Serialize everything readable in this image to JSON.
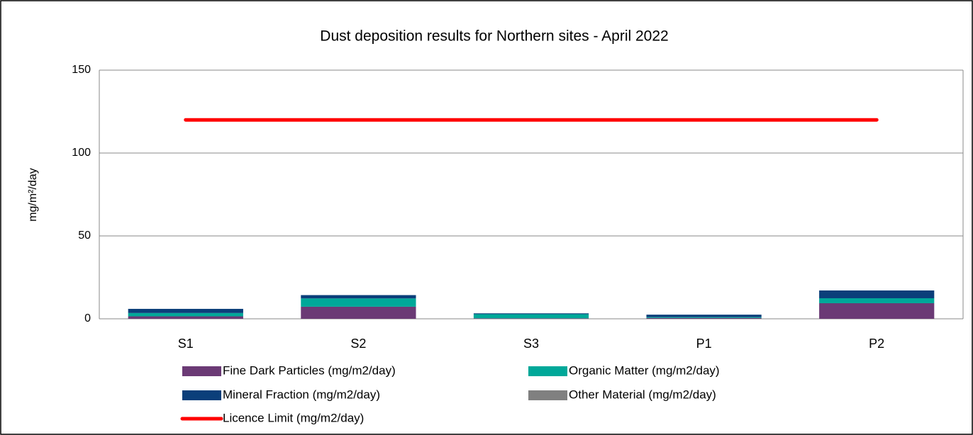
{
  "chart_data": {
    "type": "bar",
    "stacked": true,
    "title": "Dust deposition results for Northern sites - April 2022",
    "y_label": "mg/m²/day",
    "categories": [
      "S1",
      "S2",
      "S3",
      "P1",
      "P2"
    ],
    "series": [
      {
        "name": "Fine Dark Particles (mg/m2/day)",
        "color": "#6b3a75",
        "values": [
          1.5,
          7.3,
          0.3,
          0.5,
          9.4
        ]
      },
      {
        "name": "Organic Matter (mg/m2/day)",
        "color": "#00a899",
        "values": [
          2,
          5,
          2.5,
          0.5,
          3
        ]
      },
      {
        "name": "Mineral Fraction (mg/m2/day)",
        "color": "#0b3f7a",
        "values": [
          2.5,
          2,
          0.5,
          1.5,
          4.7
        ]
      },
      {
        "name": "Other Material (mg/m2/day)",
        "color": "#808080",
        "values": [
          0,
          0,
          0,
          0,
          0
        ]
      },
      {
        "name": "Licence Limit  (mg/m2/day)",
        "type": "line",
        "color": "#ff0000",
        "values": [
          120,
          120,
          120,
          120,
          120
        ]
      }
    ],
    "ylim": [
      0,
      150
    ],
    "yticks": [
      0,
      50,
      100,
      150
    ],
    "grid": true
  }
}
